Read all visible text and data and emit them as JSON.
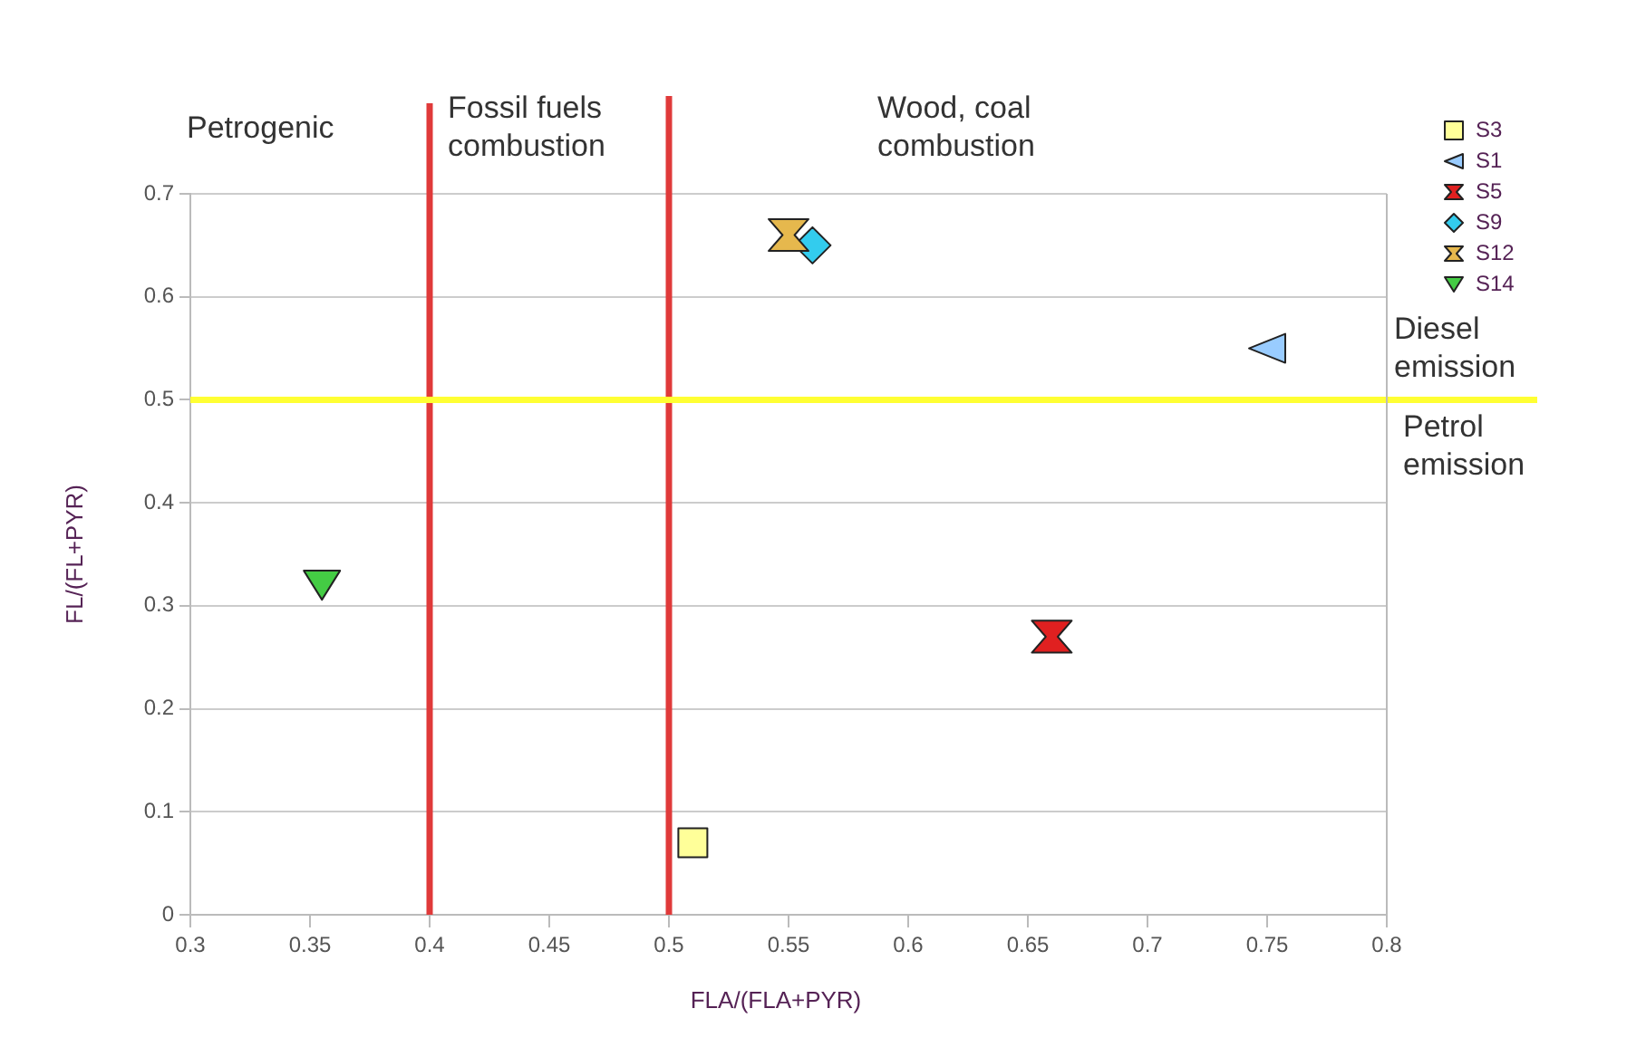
{
  "chart_data": {
    "type": "scatter",
    "xlabel": "FLA/(FLA+PYR)",
    "ylabel": "FL/(FL+PYR)",
    "xlim": [
      0.3,
      0.8
    ],
    "xticks": [
      0.3,
      0.35,
      0.4,
      0.45,
      0.5,
      0.55,
      0.6,
      0.65,
      0.7,
      0.75,
      0.8
    ],
    "ylim": [
      0,
      0.7
    ],
    "yticks": [
      0,
      0.1,
      0.2,
      0.3,
      0.4,
      0.5,
      0.6,
      0.7
    ],
    "grid": "y",
    "legend": "top right",
    "series": [
      {
        "name": "S3",
        "color": "#ffff99",
        "marker": "square",
        "x": [
          0.51
        ],
        "values": [
          0.07
        ]
      },
      {
        "name": "S1",
        "color": "#99ccff",
        "marker": "triangle-left",
        "x": [
          0.75
        ],
        "values": [
          0.55
        ]
      },
      {
        "name": "S5",
        "color": "#e02020",
        "x": [
          0.66
        ],
        "values": [
          0.27
        ]
      },
      {
        "name": "S9",
        "color": "#33ccee",
        "marker": "diamond",
        "x": [
          0.56
        ],
        "values": [
          0.65
        ]
      },
      {
        "name": "S12",
        "color": "#e6b84d",
        "x": [
          0.55
        ],
        "values": [
          0.66
        ]
      },
      {
        "name": "S14",
        "color": "#44cc44",
        "marker": "triangle-down",
        "x": [
          0.355
        ],
        "values": [
          0.32
        ]
      }
    ],
    "ref_lines": [
      {
        "axis": "x",
        "value": 0.4,
        "color": "#e03a3a"
      },
      {
        "axis": "x",
        "value": 0.5,
        "color": "#e03a3a"
      },
      {
        "axis": "y",
        "value": 0.5,
        "color": "#ffff33"
      }
    ],
    "annotations": [
      "Petrogenic",
      "Fossil fuels combustion",
      "Wood, coal combustion",
      "Diesel emission",
      "Petrol emission"
    ]
  }
}
